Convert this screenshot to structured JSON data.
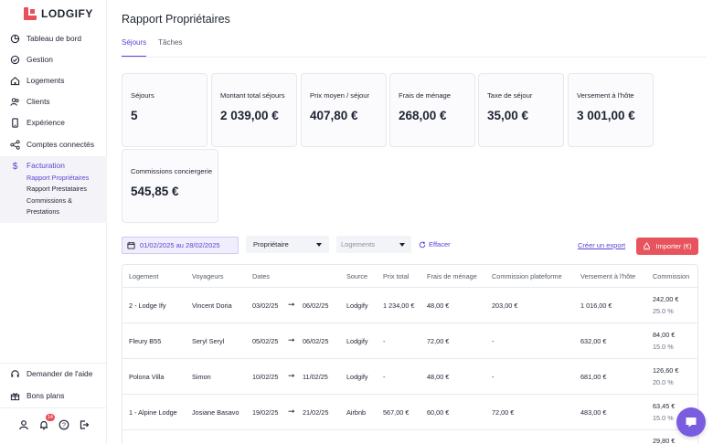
{
  "brand": {
    "name": "LODGIFY",
    "color": "#e8505b"
  },
  "sidebar": {
    "items": [
      {
        "label": "Tableau de bord",
        "icon": "dashboard-icon"
      },
      {
        "label": "Gestion",
        "icon": "check-circle-icon"
      },
      {
        "label": "Logements",
        "icon": "home-icon"
      },
      {
        "label": "Clients",
        "icon": "users-icon"
      },
      {
        "label": "Expérience",
        "icon": "phone-icon"
      },
      {
        "label": "Comptes connectés",
        "icon": "share-icon"
      },
      {
        "label": "Facturation",
        "icon": "dollar-icon"
      }
    ],
    "subitems": [
      {
        "label": "Rapport Propriétaires"
      },
      {
        "label": "Rapport Prestataires"
      },
      {
        "label": "Commissions &"
      },
      {
        "label": "Prestations"
      }
    ],
    "help": "Demander de l'aide",
    "deals": "Bons plans",
    "notification_count": "14"
  },
  "header": {
    "title": "Rapport Propriétaires",
    "tabs": [
      {
        "label": "Séjours"
      },
      {
        "label": "Tâches"
      }
    ]
  },
  "stats": [
    {
      "label": "Séjours",
      "value": "5"
    },
    {
      "label": "Montant total séjours",
      "value": "2 039,00 €"
    },
    {
      "label": "Prix moyen / séjour",
      "value": "407,80 €"
    },
    {
      "label": "Frais de ménage",
      "value": "268,00 €"
    },
    {
      "label": "Taxe de séjour",
      "value": "35,00 €"
    },
    {
      "label": "Versement à l'hôte",
      "value": "3 001,00 €"
    },
    {
      "label": "Commissions conciergerie",
      "value": "545,85 €"
    }
  ],
  "filters": {
    "date_range": "01/02/2025 au 28/02/2025",
    "owner": "Propriétaire",
    "lodging_placeholder": "Logements",
    "clear": "Effacer",
    "export": "Créer un export",
    "import": "Importer (€)"
  },
  "table": {
    "headers": [
      "Logement",
      "Voyageurs",
      "Dates",
      "Source",
      "Prix total",
      "Frais de ménage",
      "Commission plateforme",
      "Versement à l'hôte",
      "Commission"
    ],
    "rows": [
      {
        "logement": "2 - Lodge Ify",
        "voyageur": "Vincent Doria",
        "date_from": "03/02/25",
        "date_to": "06/02/25",
        "source": "Lodgify",
        "prix": "1 234,00 €",
        "menage": "48,00 €",
        "plateforme": "203,00 €",
        "versement": "1 016,00 €",
        "commission": "242,00 €",
        "commission_pct": "25.0 %"
      },
      {
        "logement": "Fleury B55",
        "voyageur": "Seryl Seryl",
        "date_from": "05/02/25",
        "date_to": "06/02/25",
        "source": "Lodgify",
        "prix": "-",
        "menage": "72,00 €",
        "plateforme": "-",
        "versement": "632,00 €",
        "commission": "84,00 €",
        "commission_pct": "15.0 %"
      },
      {
        "logement": "Polona Villa",
        "voyageur": "Simon",
        "date_from": "10/02/25",
        "date_to": "11/02/25",
        "source": "Lodgify",
        "prix": "-",
        "menage": "48,00 €",
        "plateforme": "-",
        "versement": "681,00 €",
        "commission": "126,60 €",
        "commission_pct": "20.0 %"
      },
      {
        "logement": "1 - Alpine Lodge",
        "voyageur": "Josiane Basavo",
        "date_from": "19/02/25",
        "date_to": "21/02/25",
        "source": "Airbnb",
        "prix": "567,00 €",
        "menage": "60,00 €",
        "plateforme": "72,00 €",
        "versement": "483,00 €",
        "commission": "63,45 €",
        "commission_pct": "15.0 %"
      },
      {
        "logement": "",
        "voyageur": "",
        "date_from": "",
        "date_to": "",
        "source": "",
        "prix": "",
        "menage": "",
        "plateforme": "",
        "versement": "",
        "commission": "29,80 €",
        "commission_pct": ""
      }
    ]
  }
}
